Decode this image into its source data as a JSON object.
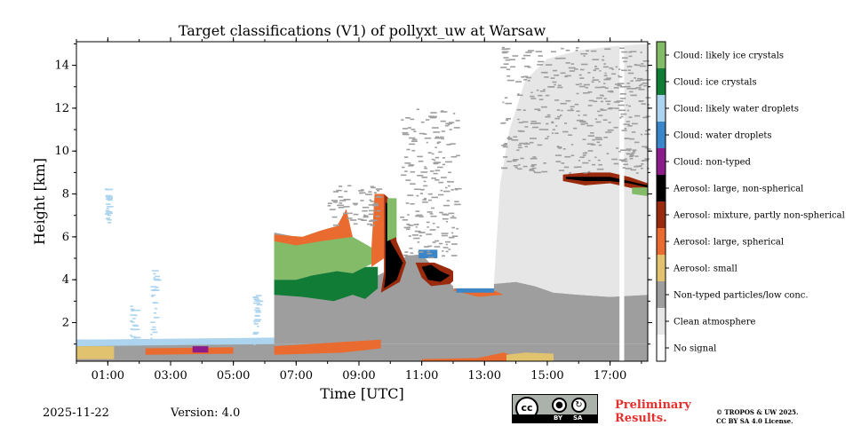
{
  "chart_data": {
    "type": "heatmap",
    "title": "Target classifications (V1) of pollyxt_uw at Warsaw",
    "xlabel": "Time [UTC]",
    "ylabel": "Height [km]",
    "xlim": [
      0,
      18.2
    ],
    "ylim": [
      0.2,
      15.1
    ],
    "xticks": [
      {
        "v": 1,
        "label": "01:00"
      },
      {
        "v": 3,
        "label": "03:00"
      },
      {
        "v": 5,
        "label": "05:00"
      },
      {
        "v": 7,
        "label": "07:00"
      },
      {
        "v": 9,
        "label": "09:00"
      },
      {
        "v": 11,
        "label": "11:00"
      },
      {
        "v": 13,
        "label": "13:00"
      },
      {
        "v": 15,
        "label": "15:00"
      },
      {
        "v": 17,
        "label": "17:00"
      }
    ],
    "yticks": [
      {
        "v": 2,
        "label": "2"
      },
      {
        "v": 4,
        "label": "4"
      },
      {
        "v": 6,
        "label": "6"
      },
      {
        "v": 8,
        "label": "8"
      },
      {
        "v": 10,
        "label": "10"
      },
      {
        "v": 12,
        "label": "12"
      },
      {
        "v": 14,
        "label": "14"
      }
    ],
    "classes": [
      {
        "name": "No signal",
        "color": "#ffffff"
      },
      {
        "name": "Clean atmosphere",
        "color": "#e6e6e6"
      },
      {
        "name": "Non-typed particles/low conc.",
        "color": "#9e9e9e"
      },
      {
        "name": "Aerosol: small",
        "color": "#e1c26e"
      },
      {
        "name": "Aerosol: large, spherical",
        "color": "#e96b2f"
      },
      {
        "name": "Aerosol: mixture, partly non-spherical",
        "color": "#9a2a0d"
      },
      {
        "name": "Aerosol: large, non-spherical",
        "color": "#000000"
      },
      {
        "name": "Cloud: non-typed",
        "color": "#8b1c8a"
      },
      {
        "name": "Cloud: water droplets",
        "color": "#3a86c8"
      },
      {
        "name": "Cloud: likely water droplets",
        "color": "#acd4ee"
      },
      {
        "name": "Cloud: ice crystals",
        "color": "#117c36"
      },
      {
        "name": "Cloud: likely ice crystals",
        "color": "#83bb69"
      }
    ],
    "regions": [
      {
        "cls": "Non-typed particles/low conc.",
        "poly": [
          [
            0,
            0.2
          ],
          [
            18.2,
            0.2
          ],
          [
            18.2,
            1.0
          ],
          [
            6.3,
            1.0
          ],
          [
            6.3,
            1.2
          ],
          [
            0,
            1.2
          ]
        ]
      },
      {
        "cls": "Aerosol: small",
        "poly": [
          [
            0,
            0.3
          ],
          [
            1.2,
            0.3
          ],
          [
            1.2,
            0.9
          ],
          [
            0,
            0.9
          ]
        ]
      },
      {
        "cls": "Cloud: likely water droplets",
        "poly": [
          [
            0,
            0.9
          ],
          [
            6.3,
            1.0
          ],
          [
            6.3,
            1.3
          ],
          [
            0,
            1.2
          ]
        ]
      },
      {
        "cls": "Aerosol: large, spherical",
        "poly": [
          [
            2.2,
            0.5
          ],
          [
            5.0,
            0.55
          ],
          [
            5.0,
            0.85
          ],
          [
            2.2,
            0.8
          ]
        ]
      },
      {
        "cls": "Cloud: non-typed",
        "poly": [
          [
            3.7,
            0.6
          ],
          [
            4.2,
            0.6
          ],
          [
            4.2,
            0.9
          ],
          [
            3.7,
            0.9
          ]
        ]
      },
      {
        "cls": "Non-typed particles/low conc.",
        "poly": [
          [
            6.3,
            1.0
          ],
          [
            6.3,
            6.2
          ],
          [
            7.0,
            6.0
          ],
          [
            8.0,
            5.6
          ],
          [
            8.5,
            5.2
          ],
          [
            9.0,
            4.5
          ],
          [
            9.6,
            4.2
          ],
          [
            10.0,
            4.5
          ],
          [
            10.5,
            5.1
          ],
          [
            11.0,
            5.2
          ],
          [
            11.6,
            4.2
          ],
          [
            12.0,
            3.7
          ],
          [
            12.6,
            3.6
          ],
          [
            13.2,
            3.8
          ],
          [
            14.0,
            3.9
          ],
          [
            14.6,
            3.7
          ],
          [
            15.2,
            3.4
          ],
          [
            16.0,
            3.3
          ],
          [
            17.0,
            3.2
          ],
          [
            18.2,
            3.3
          ],
          [
            18.2,
            1.0
          ]
        ]
      },
      {
        "cls": "Clean atmosphere",
        "poly": [
          [
            13.3,
            3.8
          ],
          [
            13.5,
            8.5
          ],
          [
            13.8,
            11.0
          ],
          [
            14.3,
            13.3
          ],
          [
            15.0,
            14.3
          ],
          [
            16.0,
            14.7
          ],
          [
            17.2,
            14.9
          ],
          [
            18.2,
            15.0
          ],
          [
            18.2,
            3.3
          ],
          [
            17.0,
            3.2
          ],
          [
            16.0,
            3.3
          ],
          [
            15.2,
            3.4
          ],
          [
            14.6,
            3.7
          ],
          [
            14.0,
            3.9
          ]
        ]
      },
      {
        "cls": "Cloud: ice crystals",
        "poly": [
          [
            6.3,
            3.3
          ],
          [
            7.2,
            3.2
          ],
          [
            8.2,
            3.0
          ],
          [
            8.8,
            3.3
          ],
          [
            9.2,
            3.1
          ],
          [
            9.6,
            3.6
          ],
          [
            9.6,
            4.6
          ],
          [
            9.2,
            4.6
          ],
          [
            8.8,
            4.3
          ],
          [
            8.3,
            4.4
          ],
          [
            7.5,
            4.2
          ],
          [
            7.0,
            4.0
          ],
          [
            6.3,
            4.0
          ]
        ]
      },
      {
        "cls": "Cloud: likely ice crystals",
        "poly": [
          [
            6.3,
            4.0
          ],
          [
            7.0,
            4.0
          ],
          [
            7.5,
            4.2
          ],
          [
            8.3,
            4.4
          ],
          [
            8.8,
            4.3
          ],
          [
            9.2,
            4.6
          ],
          [
            9.5,
            4.8
          ],
          [
            9.4,
            5.5
          ],
          [
            8.8,
            6.0
          ],
          [
            8.3,
            6.5
          ],
          [
            7.8,
            6.3
          ],
          [
            7.2,
            6.0
          ],
          [
            6.3,
            6.1
          ]
        ]
      },
      {
        "cls": "Aerosol: large, spherical",
        "poly": [
          [
            6.3,
            6.1
          ],
          [
            7.2,
            6.0
          ],
          [
            7.8,
            6.3
          ],
          [
            8.3,
            6.5
          ],
          [
            8.6,
            7.3
          ],
          [
            8.8,
            6.0
          ],
          [
            8.3,
            5.9
          ],
          [
            7.8,
            5.8
          ],
          [
            7.0,
            5.6
          ],
          [
            6.3,
            5.8
          ]
        ]
      },
      {
        "cls": "Aerosol: large, spherical",
        "poly": [
          [
            9.4,
            4.6
          ],
          [
            9.8,
            5.0
          ],
          [
            9.8,
            8.0
          ],
          [
            9.5,
            8.0
          ],
          [
            9.4,
            5.5
          ]
        ]
      },
      {
        "cls": "Aerosol: mixture, partly non-spherical",
        "poly": [
          [
            9.7,
            3.4
          ],
          [
            10.3,
            3.9
          ],
          [
            10.5,
            4.8
          ],
          [
            10.2,
            5.8
          ],
          [
            10.1,
            7.6
          ],
          [
            9.8,
            8.0
          ],
          [
            9.8,
            4.3
          ]
        ]
      },
      {
        "cls": "Aerosol: large, non-spherical",
        "poly": [
          [
            9.8,
            3.6
          ],
          [
            10.2,
            4.0
          ],
          [
            10.4,
            4.8
          ],
          [
            10.0,
            5.8
          ],
          [
            10.0,
            7.5
          ],
          [
            9.85,
            7.6
          ],
          [
            9.85,
            4.2
          ]
        ]
      },
      {
        "cls": "Cloud: likely ice crystals",
        "poly": [
          [
            9.9,
            5.8
          ],
          [
            10.2,
            6.0
          ],
          [
            10.2,
            7.8
          ],
          [
            9.9,
            7.8
          ]
        ]
      },
      {
        "cls": "Aerosol: mixture, partly non-spherical",
        "poly": [
          [
            10.8,
            4.8
          ],
          [
            11.0,
            4.1
          ],
          [
            11.3,
            3.7
          ],
          [
            11.9,
            3.8
          ],
          [
            12.2,
            4.2
          ],
          [
            11.9,
            4.5
          ],
          [
            11.4,
            4.8
          ]
        ]
      },
      {
        "cls": "Aerosol: large, non-spherical",
        "poly": [
          [
            11.0,
            4.6
          ],
          [
            11.2,
            4.0
          ],
          [
            11.6,
            3.9
          ],
          [
            11.9,
            4.2
          ],
          [
            11.6,
            4.4
          ],
          [
            11.3,
            4.7
          ]
        ]
      },
      {
        "cls": "Cloud: water droplets",
        "poly": [
          [
            10.9,
            5.0
          ],
          [
            11.5,
            5.0
          ],
          [
            11.5,
            5.4
          ],
          [
            10.9,
            5.4
          ]
        ]
      },
      {
        "cls": "Aerosol: large, spherical",
        "poly": [
          [
            12.0,
            3.5
          ],
          [
            12.8,
            3.2
          ],
          [
            13.6,
            3.3
          ],
          [
            13.0,
            3.7
          ],
          [
            12.2,
            3.7
          ]
        ]
      },
      {
        "cls": "Cloud: water droplets",
        "poly": [
          [
            12.1,
            3.4
          ],
          [
            13.3,
            3.4
          ],
          [
            13.3,
            3.6
          ],
          [
            12.1,
            3.6
          ]
        ]
      },
      {
        "cls": "Aerosol: large, spherical",
        "poly": [
          [
            6.3,
            0.5
          ],
          [
            8.5,
            0.6
          ],
          [
            9.7,
            0.8
          ],
          [
            9.7,
            1.2
          ],
          [
            8.5,
            1.1
          ],
          [
            6.3,
            0.9
          ]
        ]
      },
      {
        "cls": "Aerosol: large, spherical",
        "poly": [
          [
            11.0,
            0.3
          ],
          [
            12.8,
            0.35
          ],
          [
            13.6,
            0.6
          ],
          [
            14.2,
            0.35
          ],
          [
            14.2,
            0.2
          ],
          [
            11.0,
            0.2
          ]
        ]
      },
      {
        "cls": "Aerosol: small",
        "poly": [
          [
            13.7,
            0.2
          ],
          [
            15.2,
            0.2
          ],
          [
            15.2,
            0.55
          ],
          [
            14.3,
            0.6
          ],
          [
            13.7,
            0.5
          ]
        ]
      },
      {
        "cls": "Aerosol: mixture, partly non-spherical",
        "poly": [
          [
            15.5,
            8.6
          ],
          [
            16.2,
            8.4
          ],
          [
            17.0,
            8.5
          ],
          [
            17.6,
            8.3
          ],
          [
            18.2,
            8.1
          ],
          [
            18.2,
            8.5
          ],
          [
            17.6,
            8.8
          ],
          [
            17.0,
            9.0
          ],
          [
            16.2,
            9.0
          ],
          [
            15.5,
            8.9
          ]
        ]
      },
      {
        "cls": "Aerosol: large, non-spherical",
        "poly": [
          [
            15.6,
            8.7
          ],
          [
            16.2,
            8.6
          ],
          [
            17.0,
            8.6
          ],
          [
            17.6,
            8.5
          ],
          [
            18.2,
            8.3
          ],
          [
            18.2,
            8.4
          ],
          [
            17.6,
            8.6
          ],
          [
            17.0,
            8.8
          ],
          [
            16.2,
            8.8
          ],
          [
            15.6,
            8.8
          ]
        ]
      },
      {
        "cls": "Cloud: likely ice crystals",
        "poly": [
          [
            17.7,
            8.0
          ],
          [
            18.2,
            7.9
          ],
          [
            18.2,
            8.3
          ],
          [
            17.7,
            8.3
          ]
        ]
      },
      {
        "cls": "No signal",
        "poly": [
          [
            17.3,
            0.2
          ],
          [
            17.45,
            0.2
          ],
          [
            17.45,
            14.9
          ],
          [
            17.3,
            14.9
          ]
        ]
      },
      {
        "cls": "No signal",
        "poly": [
          [
            12.0,
            3.6
          ],
          [
            13.3,
            3.6
          ],
          [
            13.3,
            12.0
          ],
          [
            12.0,
            12.0
          ]
        ]
      }
    ],
    "speckles": [
      {
        "cls": "Cloud: likely water droplets",
        "x": [
          0.9,
          1.0
        ],
        "y": [
          6.6,
          8.4
        ]
      },
      {
        "cls": "Cloud: likely water droplets",
        "x": [
          1.7,
          1.85
        ],
        "y": [
          1.0,
          2.8
        ]
      },
      {
        "cls": "Cloud: likely water droplets",
        "x": [
          2.35,
          2.5
        ],
        "y": [
          1.0,
          4.5
        ]
      },
      {
        "cls": "Cloud: likely water droplets",
        "x": [
          5.6,
          5.75
        ],
        "y": [
          1.0,
          3.4
        ]
      },
      {
        "cls": "Non-typed particles/low conc.",
        "x": [
          13.5,
          18.2
        ],
        "y": [
          9.0,
          14.9
        ]
      },
      {
        "cls": "Non-typed particles/low conc.",
        "x": [
          8.0,
          9.6
        ],
        "y": [
          6.5,
          8.5
        ]
      },
      {
        "cls": "Non-typed particles/low conc.",
        "x": [
          10.3,
          12.1
        ],
        "y": [
          5.0,
          12.0
        ]
      }
    ]
  },
  "footer": {
    "date": "2025-11-22",
    "version": "Version: 4.0",
    "preliminary": "Preliminary\nResults.",
    "copyright": "© TROPOS & UW 2025.\nCC BY SA 4.0 License.",
    "badge_by": "BY",
    "badge_sa": "SA",
    "badge_cc": "cc"
  }
}
